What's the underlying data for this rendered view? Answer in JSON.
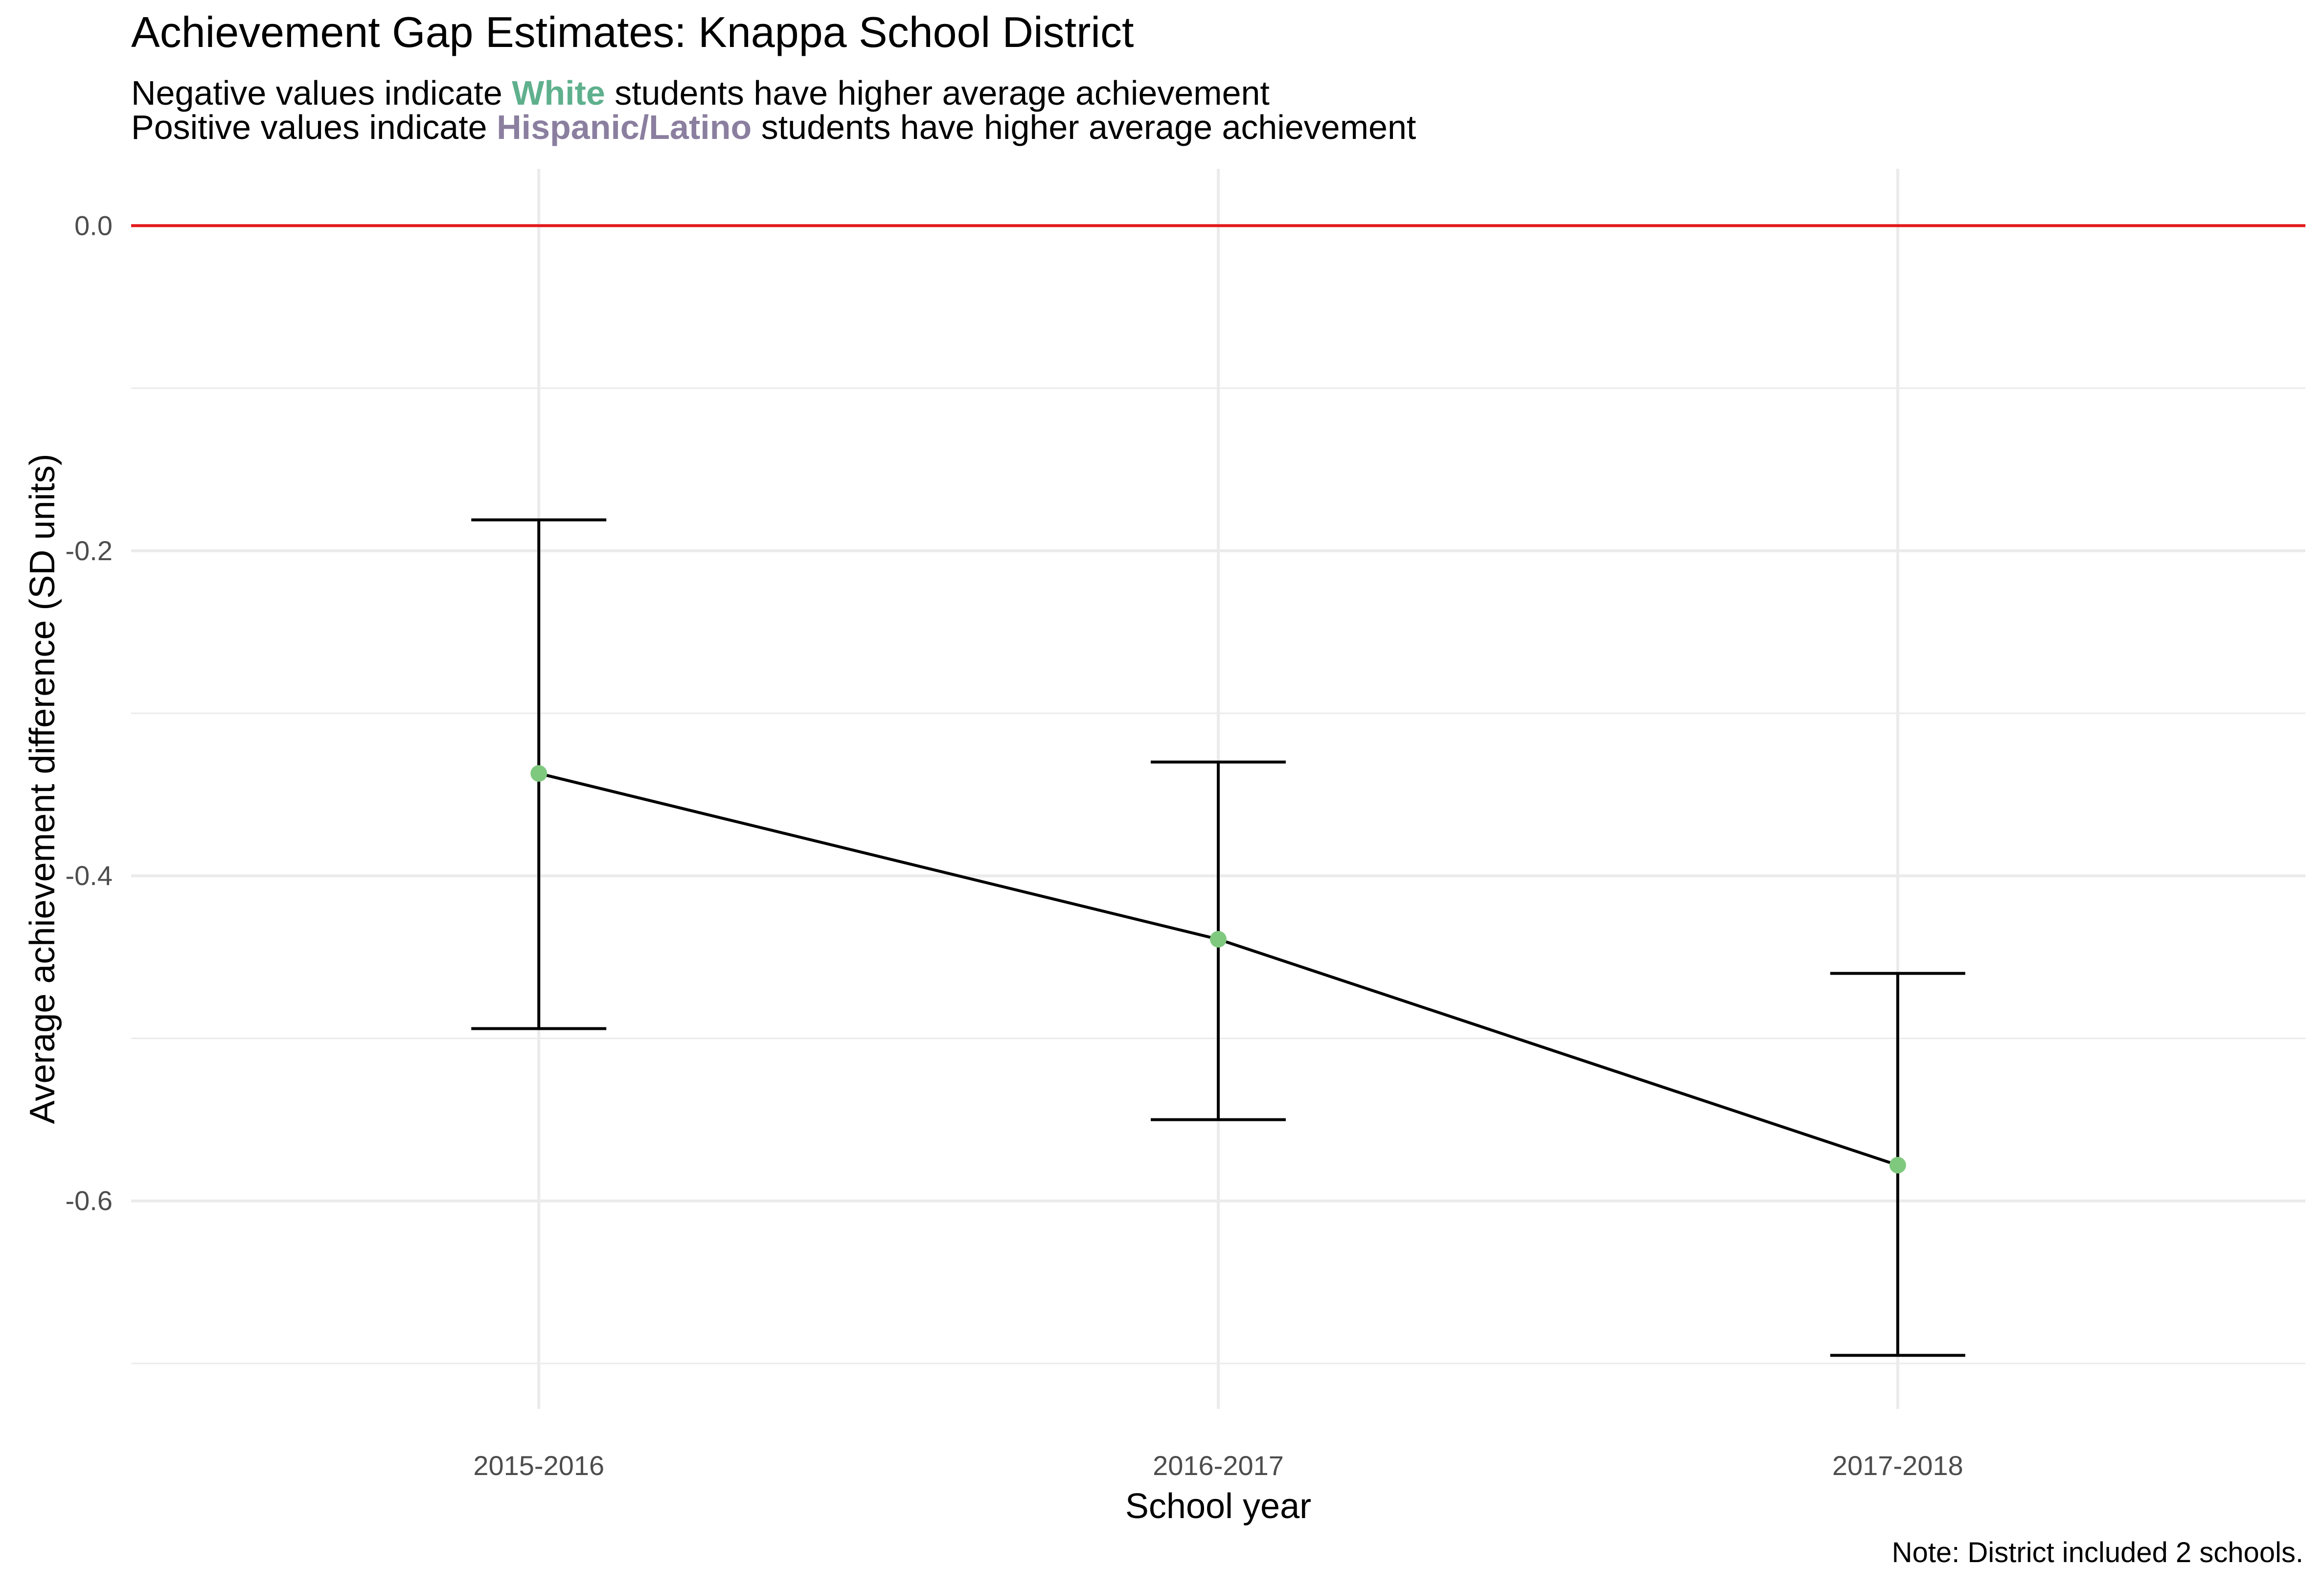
{
  "title": "Achievement Gap Estimates: Knappa School District",
  "subtitle": {
    "line1_prefix": "Negative values indicate ",
    "line1_highlight": "White",
    "line1_suffix": " students have higher average achievement",
    "line2_prefix": "Positive values indicate ",
    "line2_highlight": "Hispanic/Latino",
    "line2_suffix": " students have higher average achievement"
  },
  "caption": "Note: District included 2 schools.",
  "colors": {
    "white_group": "#5fb08d",
    "hispanic_group": "#8b7fa0",
    "point": "#7fc97f",
    "reference_line": "#e41a1c",
    "line": "#000000",
    "grid": "#ebebeb"
  },
  "chart_data": {
    "type": "line",
    "title": "Achievement Gap Estimates: Knappa School District",
    "xlabel": "School year",
    "ylabel": "Average achievement difference (SD units)",
    "categories": [
      "2015-2016",
      "2016-2017",
      "2017-2018"
    ],
    "values": [
      -0.337,
      -0.439,
      -0.578
    ],
    "error_bars": {
      "lower": [
        -0.494,
        -0.55,
        -0.695
      ],
      "upper": [
        -0.181,
        -0.33,
        -0.46
      ]
    },
    "reference_line_y": 0.0,
    "ylim": [
      -0.728,
      0.035
    ],
    "yticks": [
      0.0,
      -0.2,
      -0.4,
      -0.6
    ],
    "ytick_labels": [
      "0.0",
      "-0.2",
      "-0.4",
      "-0.6"
    ],
    "grid": true
  }
}
